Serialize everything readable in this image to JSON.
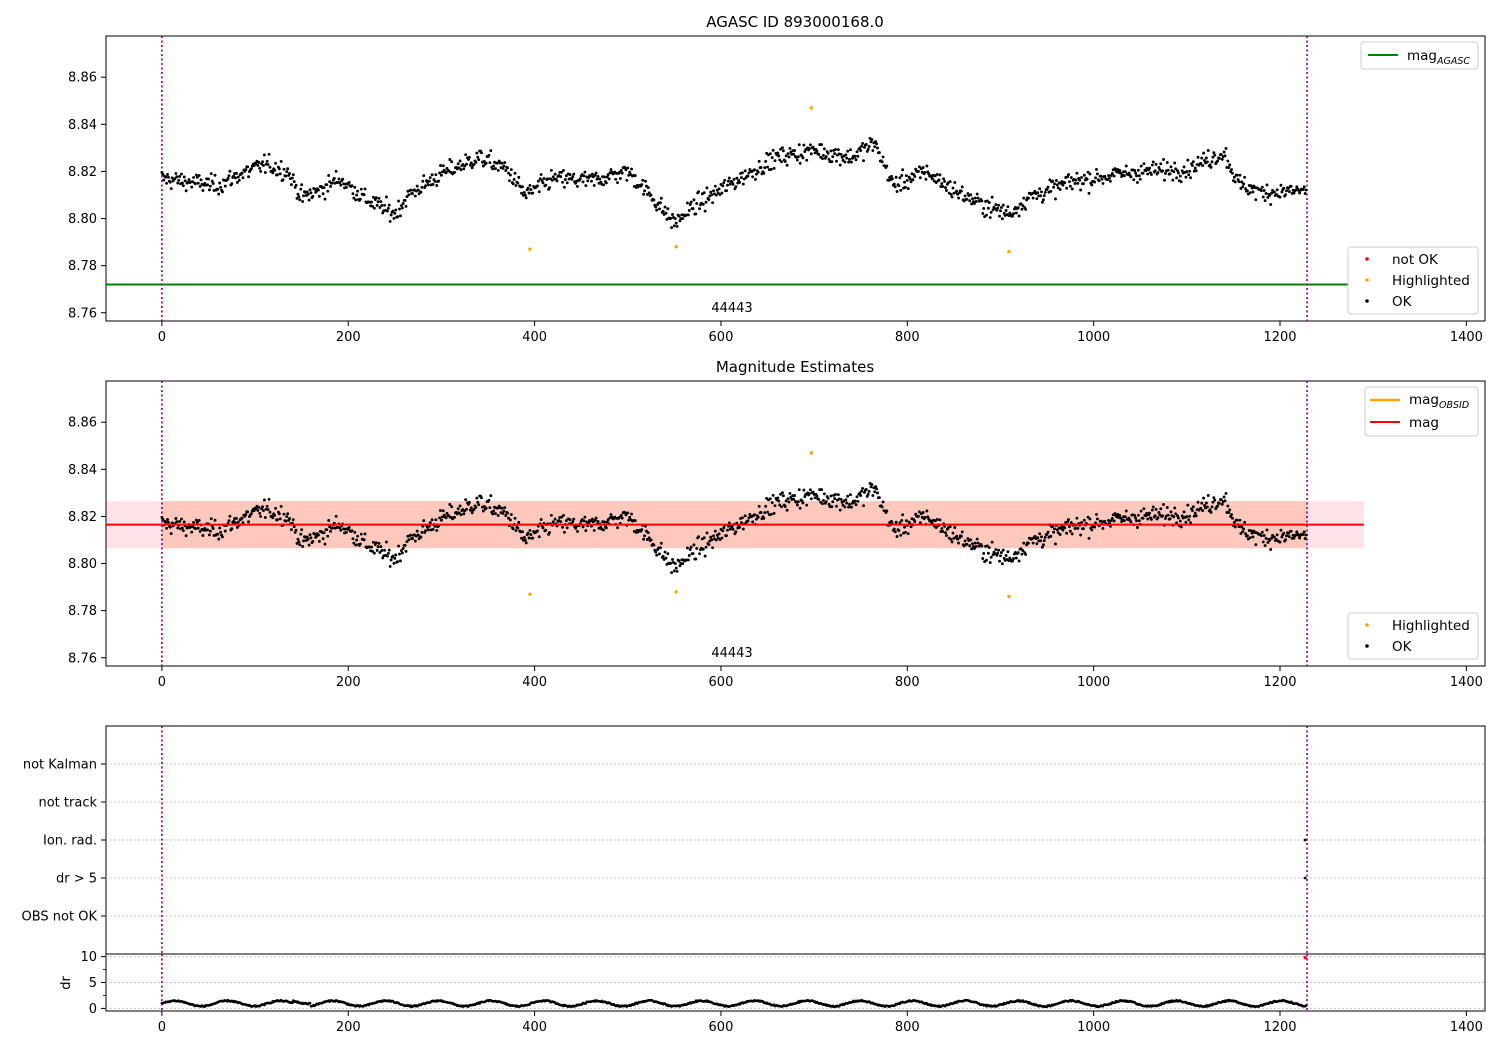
{
  "figure": {
    "title_top": "AGASC ID 893000168.0",
    "title_mid": "Magnitude Estimates",
    "obsid_label": "44443"
  },
  "colors": {
    "ok": "#000000",
    "highlighted": "#ffa500",
    "not_ok": "#ff0000",
    "mag_agasc": "#008000",
    "mag_obsid": "#ffa500",
    "mag": "#ff0000",
    "band_inner": "#ffa07a",
    "band_outer": "#ffc0cb",
    "obs_boundary": "#800080"
  },
  "legends": {
    "top_lines": [
      {
        "main": "mag",
        "sub": "AGASC"
      }
    ],
    "top_points": [
      "not OK",
      "Highlighted",
      "OK"
    ],
    "mid_lines": [
      {
        "main": "mag",
        "sub": "OBSID"
      },
      {
        "main": "mag",
        "sub": ""
      }
    ],
    "mid_points": [
      "Highlighted",
      "OK"
    ]
  },
  "chart_data": [
    {
      "type": "scatter",
      "title": "AGASC ID 893000168.0",
      "xlim": [
        -60,
        1420
      ],
      "ylim": [
        8.7565,
        8.8775
      ],
      "x_ticks": [
        0,
        200,
        400,
        600,
        800,
        1000,
        1200,
        1400
      ],
      "y_ticks": [
        8.76,
        8.78,
        8.8,
        8.82,
        8.84,
        8.86
      ],
      "mag_agasc": 8.772,
      "obs_boundaries": [
        0,
        1229
      ],
      "obsid_annotation": "44443",
      "n_points": 1229,
      "trend_knots": [
        [
          0,
          8.817
        ],
        [
          60,
          8.814
        ],
        [
          80,
          8.818
        ],
        [
          110,
          8.823
        ],
        [
          135,
          8.82
        ],
        [
          150,
          8.809
        ],
        [
          170,
          8.812
        ],
        [
          190,
          8.817
        ],
        [
          220,
          8.808
        ],
        [
          250,
          8.802
        ],
        [
          265,
          8.81
        ],
        [
          300,
          8.819
        ],
        [
          340,
          8.826
        ],
        [
          370,
          8.821
        ],
        [
          390,
          8.81
        ],
        [
          420,
          8.817
        ],
        [
          460,
          8.816
        ],
        [
          500,
          8.82
        ],
        [
          520,
          8.812
        ],
        [
          550,
          8.798
        ],
        [
          570,
          8.805
        ],
        [
          620,
          8.817
        ],
        [
          660,
          8.826
        ],
        [
          700,
          8.829
        ],
        [
          740,
          8.826
        ],
        [
          765,
          8.832
        ],
        [
          785,
          8.814
        ],
        [
          820,
          8.82
        ],
        [
          850,
          8.812
        ],
        [
          880,
          8.806
        ],
        [
          910,
          8.802
        ],
        [
          930,
          8.809
        ],
        [
          980,
          8.816
        ],
        [
          1050,
          8.82
        ],
        [
          1100,
          8.821
        ],
        [
          1140,
          8.828
        ],
        [
          1155,
          8.815
        ],
        [
          1180,
          8.811
        ],
        [
          1229,
          8.812
        ]
      ],
      "scatter_sd": 0.006,
      "highlighted": [
        [
          395,
          8.787
        ],
        [
          552,
          8.788
        ],
        [
          697,
          8.847
        ],
        [
          909,
          8.786
        ]
      ],
      "legend_lines": [
        "mag_AGASC"
      ],
      "legend_points": [
        "not OK",
        "Highlighted",
        "OK"
      ]
    },
    {
      "type": "scatter",
      "title": "Magnitude Estimates",
      "xlim": [
        -60,
        1420
      ],
      "ylim": [
        8.7565,
        8.8775
      ],
      "x_ticks": [
        0,
        200,
        400,
        600,
        800,
        1000,
        1200,
        1400
      ],
      "y_ticks": [
        8.76,
        8.78,
        8.8,
        8.82,
        8.84,
        8.86
      ],
      "mag": 8.8165,
      "mag_band": [
        8.8065,
        8.8265
      ],
      "band_x": [
        -60,
        1290
      ],
      "obs_boundaries": [
        0,
        1229
      ],
      "obsid_annotation": "44443",
      "highlighted": [
        [
          395,
          8.787
        ],
        [
          552,
          8.788
        ],
        [
          697,
          8.847
        ],
        [
          909,
          8.786
        ]
      ],
      "legend_lines": [
        "mag_OBSID",
        "mag"
      ],
      "legend_points": [
        "Highlighted",
        "OK"
      ]
    },
    {
      "type": "scatter",
      "flag_categories": [
        "not Kalman",
        "not track",
        "Ion. rad.",
        "dr > 5",
        "OBS not OK"
      ],
      "flag_points": [
        {
          "category": "Ion. rad.",
          "x": 1227
        },
        {
          "category": "dr > 5",
          "x": 1227
        }
      ],
      "xlim": [
        -60,
        1420
      ],
      "x_ticks": [
        0,
        200,
        400,
        600,
        800,
        1000,
        1200,
        1400
      ]
    },
    {
      "type": "scatter",
      "ylabel": "dr",
      "xlim": [
        -60,
        1420
      ],
      "ylim": [
        -0.5,
        10.5
      ],
      "y_ticks": [
        0,
        5,
        10
      ],
      "x_ticks": [
        0,
        200,
        400,
        600,
        800,
        1000,
        1200,
        1400
      ],
      "dr_typical": [
        0.3,
        1.8
      ],
      "not_ok_points": [
        [
          1227,
          9.8
        ]
      ]
    }
  ]
}
